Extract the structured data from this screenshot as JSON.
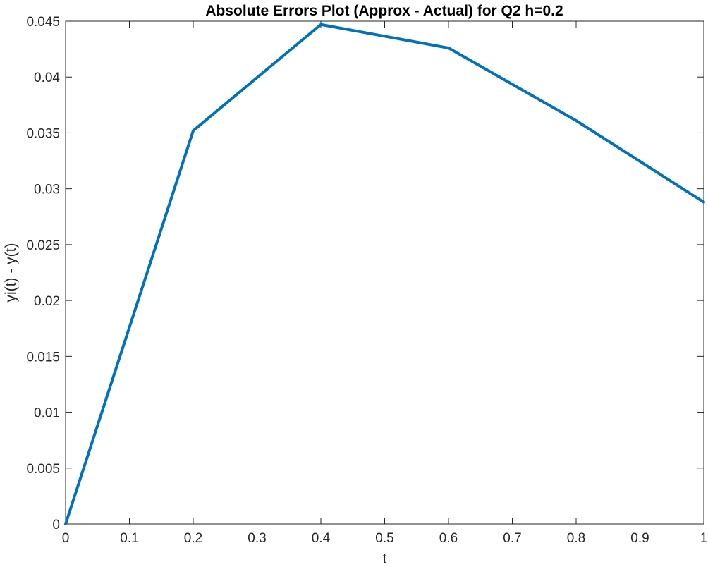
{
  "chart_data": {
    "type": "line",
    "title": "Absolute Errors Plot (Approx - Actual) for Q2 h=0.2",
    "xlabel": "t",
    "ylabel": "yi(t) - y(t)",
    "xlim": [
      0,
      1
    ],
    "ylim": [
      0,
      0.045
    ],
    "xticks": [
      "0",
      "0.1",
      "0.2",
      "0.3",
      "0.4",
      "0.5",
      "0.6",
      "0.7",
      "0.8",
      "0.9",
      "1"
    ],
    "yticks": [
      "0",
      "0.005",
      "0.01",
      "0.015",
      "0.02",
      "0.025",
      "0.03",
      "0.035",
      "0.04",
      "0.045"
    ],
    "grid": false,
    "series": [
      {
        "color": "#0072BD",
        "x": [
          0,
          0.2,
          0.4,
          0.6,
          0.8,
          1.0
        ],
        "y": [
          0,
          0.0352,
          0.0447,
          0.0426,
          0.0361,
          0.0288
        ]
      }
    ]
  }
}
